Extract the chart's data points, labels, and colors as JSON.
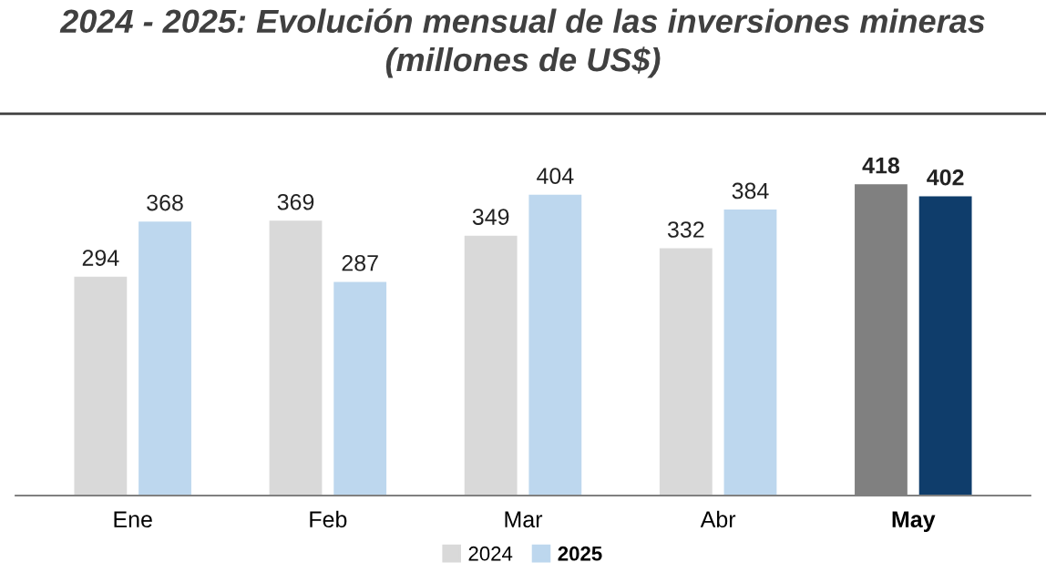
{
  "chart_data": {
    "type": "bar",
    "title": "2024 - 2025: Evolución mensual de las inversiones mineras\n(millones de US$)",
    "categories": [
      "Ene",
      "Feb",
      "Mar",
      "Abr",
      "May"
    ],
    "series": [
      {
        "name": "2024",
        "color": "#d9d9d9",
        "colors": [
          "#d9d9d9",
          "#d9d9d9",
          "#d9d9d9",
          "#d9d9d9",
          "#808080"
        ],
        "values": [
          294,
          369,
          349,
          332,
          418
        ]
      },
      {
        "name": "2025",
        "color": "#bdd7ee",
        "colors": [
          "#bdd7ee",
          "#bdd7ee",
          "#bdd7ee",
          "#bdd7ee",
          "#0f3d6b"
        ],
        "values": [
          368,
          287,
          404,
          384,
          402
        ]
      }
    ],
    "data_labels": true,
    "legend": "bottom",
    "grid": false
  }
}
